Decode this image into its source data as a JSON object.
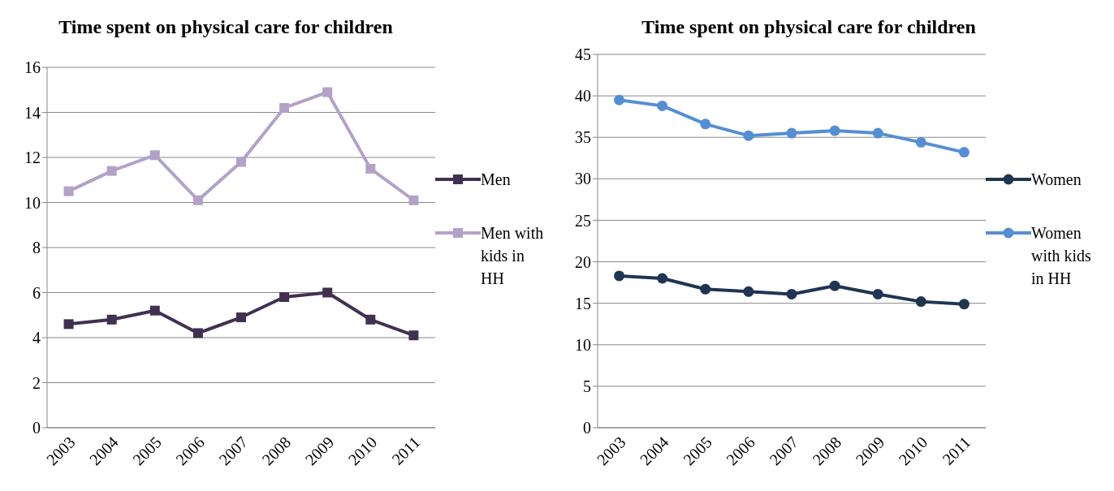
{
  "chart_data": [
    {
      "type": "line",
      "title": "Time spent on physical care for children",
      "categories": [
        "2003",
        "2004",
        "2005",
        "2006",
        "2007",
        "2008",
        "2009",
        "2010",
        "2011"
      ],
      "series": [
        {
          "name": "Men",
          "color": "#403152",
          "values": [
            4.6,
            4.8,
            5.2,
            4.2,
            4.9,
            5.8,
            6.0,
            4.8,
            4.1
          ]
        },
        {
          "name": "Men with kids in HH",
          "color": "#b3a2c7",
          "values": [
            10.5,
            11.4,
            12.1,
            10.1,
            11.8,
            14.2,
            14.9,
            11.5,
            10.1
          ]
        }
      ],
      "ylim": [
        0,
        16
      ],
      "yticks": [
        0,
        2,
        4,
        6,
        8,
        10,
        12,
        14,
        16
      ],
      "grid": "y",
      "legend": "right",
      "marker": "square",
      "line_style": "solid"
    },
    {
      "type": "line",
      "title": "Time spent on physical care for children",
      "categories": [
        "2003",
        "2004",
        "2005",
        "2006",
        "2007",
        "2008",
        "2009",
        "2010",
        "2011"
      ],
      "series": [
        {
          "name": "Women",
          "color": "#1f3552",
          "values": [
            18.3,
            18.0,
            16.7,
            16.4,
            16.1,
            17.1,
            16.1,
            15.2,
            14.9
          ]
        },
        {
          "name": "Women with kids in HH",
          "color": "#558ed5",
          "values": [
            39.5,
            38.8,
            36.6,
            35.2,
            35.5,
            35.8,
            35.5,
            34.4,
            33.2
          ]
        }
      ],
      "ylim": [
        0,
        45
      ],
      "yticks": [
        0,
        5,
        10,
        15,
        20,
        25,
        30,
        35,
        40,
        45
      ],
      "grid": "y",
      "legend": "right",
      "marker": "circle",
      "line_style": "solid"
    }
  ]
}
